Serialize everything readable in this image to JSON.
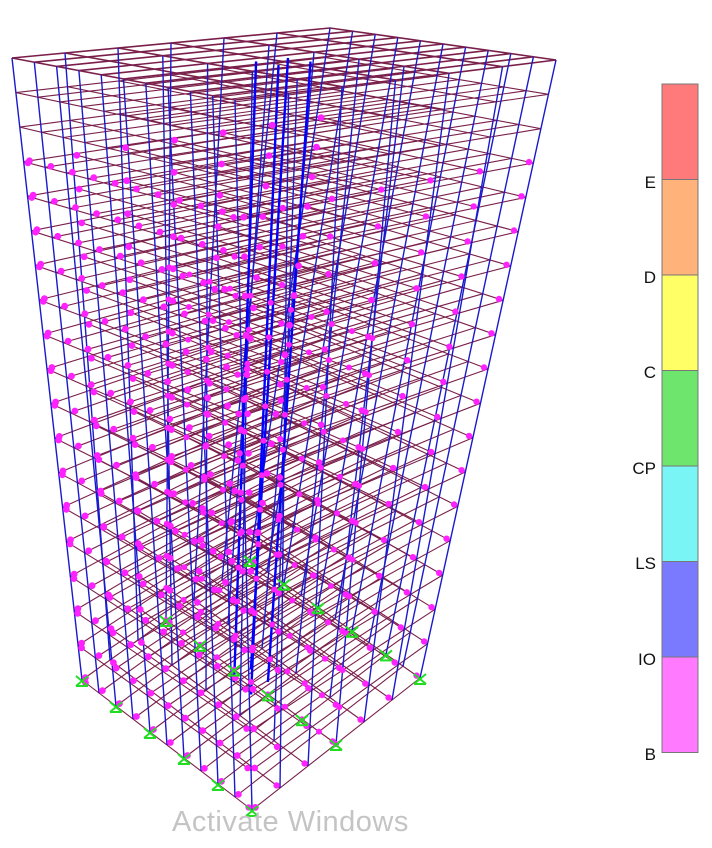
{
  "legend": {
    "bands": [
      {
        "key": "E-band",
        "color": "#ff7a7a"
      },
      {
        "key": "D-band",
        "color": "#ffb27a"
      },
      {
        "key": "C-band",
        "color": "#ffff66"
      },
      {
        "key": "CP-band",
        "color": "#6ee66e"
      },
      {
        "key": "LS-band",
        "color": "#7af5f5"
      },
      {
        "key": "IO-band",
        "color": "#7a7aff"
      },
      {
        "key": "B-band",
        "color": "#ff7aff"
      }
    ],
    "labels": [
      "E",
      "D",
      "C",
      "CP",
      "LS",
      "IO",
      "B"
    ]
  },
  "colors": {
    "columns": "#1a1acc",
    "beams": "#7a1f4a",
    "hinges": "#ff22ff",
    "supports": "#22dd22",
    "core": "#0000ff"
  },
  "model": {
    "stories": 18,
    "grid_x": 10,
    "grid_y": 6
  },
  "watermark": "Activate Windows"
}
